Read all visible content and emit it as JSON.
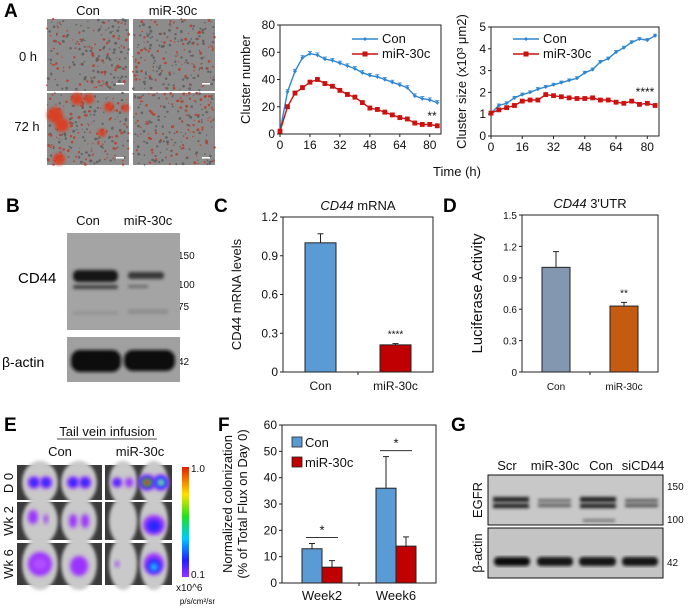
{
  "panel_labels": [
    "A",
    "B",
    "C",
    "D",
    "E",
    "F",
    "G"
  ],
  "panel_a": {
    "columns": [
      "Con",
      "miR-30c"
    ],
    "rows": [
      "0 h",
      "72 h"
    ]
  },
  "panel_b": {
    "lanes": [
      "Con",
      "miR-30c"
    ],
    "proteins": [
      "CD44",
      "β-actin"
    ],
    "markers": [
      "150",
      "100",
      "75",
      "42"
    ]
  },
  "panel_e": {
    "title": "Tail vein infusion",
    "columns": [
      "Con",
      "miR-30c"
    ],
    "rows": [
      "D 0",
      "Wk 2",
      "Wk 6"
    ],
    "colorbar": {
      "max": "1.0",
      "min": "0.1",
      "unit_line1": "x10^6",
      "unit_line2": "p/s/cm²/sr"
    }
  },
  "panel_g": {
    "lanes": [
      "Scr",
      "miR-30c",
      "Con",
      "siCD44"
    ],
    "proteins": [
      "EGFR",
      "β-actin"
    ],
    "markers": [
      "150",
      "100",
      "42"
    ]
  },
  "colors": {
    "con_line": "#2e86d0",
    "mir_line": "#cc1111",
    "con_bar": "#5b9bd5",
    "mir_bar": "#c00000",
    "luc_con": "#8497b0",
    "luc_mir": "#c55a11"
  },
  "chart_data": [
    {
      "panel": "A",
      "type": "line",
      "xlabel": "Time (h)",
      "ylabel": "Cluster number",
      "xlim": [
        0,
        86
      ],
      "ylim": [
        0,
        80
      ],
      "xticks": [
        "0",
        "16",
        "32",
        "48",
        "64",
        "80"
      ],
      "yticks": [
        "0",
        "20",
        "40",
        "60",
        "80"
      ],
      "x": [
        0,
        4,
        8,
        12,
        16,
        20,
        24,
        28,
        32,
        36,
        40,
        44,
        48,
        52,
        56,
        60,
        64,
        68,
        72,
        76,
        80,
        84
      ],
      "series": [
        {
          "name": "Con",
          "marker": "diamond",
          "sem": 1.5,
          "values": [
            2,
            31,
            46,
            56,
            59,
            58,
            55,
            54,
            52,
            50,
            48,
            45,
            43,
            42,
            40,
            38,
            36,
            34,
            28,
            26,
            25,
            23
          ]
        },
        {
          "name": "miR-30c",
          "marker": "square",
          "sem": 1.5,
          "values": [
            2,
            20,
            30,
            34,
            38,
            40,
            37,
            35,
            32,
            29,
            27,
            23,
            19,
            18,
            16,
            14,
            12,
            11,
            8,
            7,
            7,
            6
          ]
        }
      ],
      "annotation": "**",
      "legend": "top-right",
      "grid": false
    },
    {
      "panel": "A",
      "type": "line",
      "xlabel": "",
      "ylabel": "Cluster size (x10³ μm2)",
      "xlim": [
        0,
        86
      ],
      "ylim": [
        0,
        5
      ],
      "xticks": [
        "0",
        "16",
        "32",
        "48",
        "64",
        "80"
      ],
      "yticks": [
        "0",
        "1",
        "2",
        "3",
        "4",
        "5"
      ],
      "x": [
        0,
        4,
        8,
        12,
        16,
        20,
        24,
        28,
        32,
        36,
        40,
        44,
        48,
        52,
        56,
        60,
        64,
        68,
        72,
        76,
        80,
        84
      ],
      "series": [
        {
          "name": "Con",
          "marker": "diamond",
          "sem": 0.07,
          "values": [
            1.05,
            1.4,
            1.5,
            1.75,
            1.9,
            2.0,
            2.15,
            2.25,
            2.35,
            2.45,
            2.55,
            2.65,
            2.9,
            3.05,
            3.4,
            3.55,
            3.85,
            4.05,
            4.3,
            4.45,
            4.4,
            4.6
          ]
        },
        {
          "name": "miR-30c",
          "marker": "square",
          "sem": 0.07,
          "values": [
            1.05,
            1.2,
            1.3,
            1.4,
            1.6,
            1.65,
            1.65,
            1.9,
            1.85,
            1.8,
            1.75,
            1.72,
            1.72,
            1.75,
            1.65,
            1.65,
            1.55,
            1.5,
            1.6,
            1.45,
            1.5,
            1.4
          ]
        }
      ],
      "annotation": "****",
      "legend": "top-left",
      "grid": false
    },
    {
      "panel": "C",
      "type": "bar",
      "title": "CD44 mRNA",
      "ylabel": "CD44 mRNA levels",
      "ylim": [
        0,
        1.2
      ],
      "yticks": [
        "0",
        "0.3",
        "0.6",
        "0.9",
        "1.2"
      ],
      "categories": [
        "Con",
        "miR-30c"
      ],
      "values": [
        1.0,
        0.21
      ],
      "errors": [
        0.07,
        0.01
      ],
      "annotations": [
        "",
        "****"
      ]
    },
    {
      "panel": "D",
      "type": "bar",
      "title": "CD44 3'UTR",
      "ylabel": "Luciferase Activity",
      "ylim": [
        0,
        1.5
      ],
      "yticks": [
        "0",
        "0.3",
        "0.6",
        "0.9",
        "1.2",
        "1.5"
      ],
      "categories": [
        "Con",
        "miR-30c"
      ],
      "values": [
        1.0,
        0.63
      ],
      "errors": [
        0.15,
        0.035
      ],
      "annotations": [
        "",
        "**"
      ]
    },
    {
      "panel": "F",
      "type": "bar",
      "ylabel": [
        "Normalized colonization",
        "(% of Total Flux on Day 0)"
      ],
      "ylim": [
        0,
        60
      ],
      "yticks": [
        "0",
        "10",
        "20",
        "30",
        "40",
        "50",
        "60"
      ],
      "categories": [
        "Week2",
        "Week6"
      ],
      "series": [
        {
          "name": "Con",
          "values": [
            13,
            36
          ],
          "errors": [
            2,
            12
          ]
        },
        {
          "name": "miR-30c",
          "values": [
            6,
            14
          ],
          "errors": [
            2.5,
            3.5
          ]
        }
      ],
      "annotations": [
        "*",
        "*"
      ],
      "legend": "top-left"
    }
  ]
}
